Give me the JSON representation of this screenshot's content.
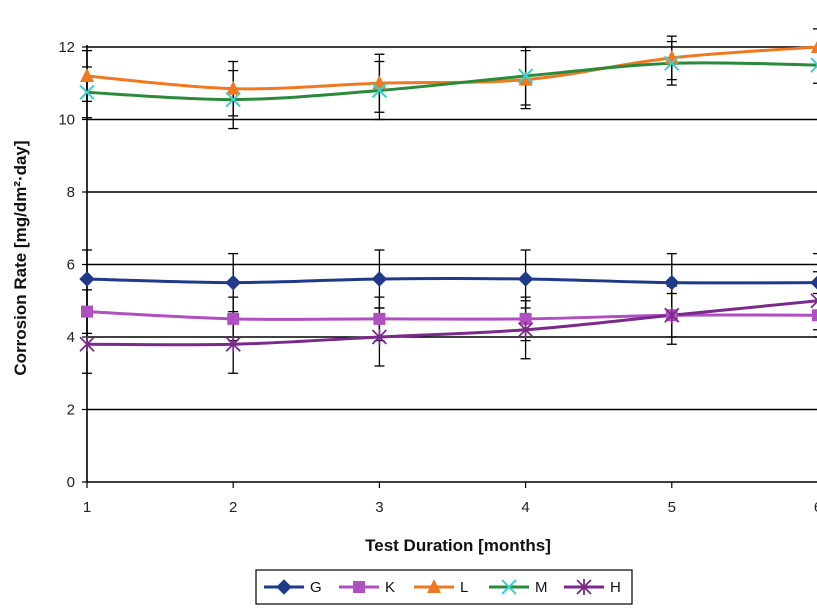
{
  "chart_data": {
    "type": "line",
    "xlabel": "Test Duration [months]",
    "ylabel": "Corrosion Rate [mg/dm²·day]",
    "x": [
      1,
      2,
      3,
      4,
      5,
      6
    ],
    "x_tick_labels": [
      "1",
      "2",
      "3",
      "4",
      "5",
      "6"
    ],
    "y_ticks": [
      0,
      2,
      4,
      6,
      8,
      10,
      12
    ],
    "y_tick_labels": [
      "0",
      "2",
      "4",
      "6",
      "8",
      "10",
      "12"
    ],
    "xlim": [
      1,
      6
    ],
    "ylim": [
      0,
      12
    ],
    "grid": "horizontal",
    "legend_position": "bottom",
    "series": [
      {
        "name": "G",
        "color": "#1f3a8a",
        "marker": "diamond",
        "values": [
          5.6,
          5.5,
          5.6,
          5.6,
          5.5,
          5.5
        ],
        "error": [
          0.8,
          0.8,
          0.8,
          0.8,
          0.8,
          0.8
        ]
      },
      {
        "name": "K",
        "color": "#b04fc0",
        "marker": "square",
        "values": [
          4.7,
          4.5,
          4.5,
          4.5,
          4.6,
          4.6
        ],
        "error": [
          0.6,
          0.6,
          0.6,
          0.6,
          0.6,
          0.6
        ]
      },
      {
        "name": "L",
        "color": "#f07820",
        "marker": "triangle",
        "values": [
          11.2,
          10.85,
          11.0,
          11.1,
          11.7,
          12.0
        ],
        "error": [
          0.7,
          0.75,
          0.8,
          0.8,
          0.6,
          0.5
        ]
      },
      {
        "name": "M",
        "color": "#2a8a3a",
        "marker": "asterisk-x",
        "values": [
          10.75,
          10.55,
          10.8,
          11.2,
          11.55,
          11.5
        ],
        "error": [
          0.7,
          0.8,
          0.8,
          0.8,
          0.6,
          0.5
        ]
      },
      {
        "name": "H",
        "color": "#7a2a8a",
        "marker": "star",
        "values": [
          3.8,
          3.8,
          4.0,
          4.2,
          4.6,
          5.0
        ],
        "error": [
          0.8,
          0.8,
          0.8,
          0.8,
          0.8,
          0.8
        ]
      }
    ]
  }
}
